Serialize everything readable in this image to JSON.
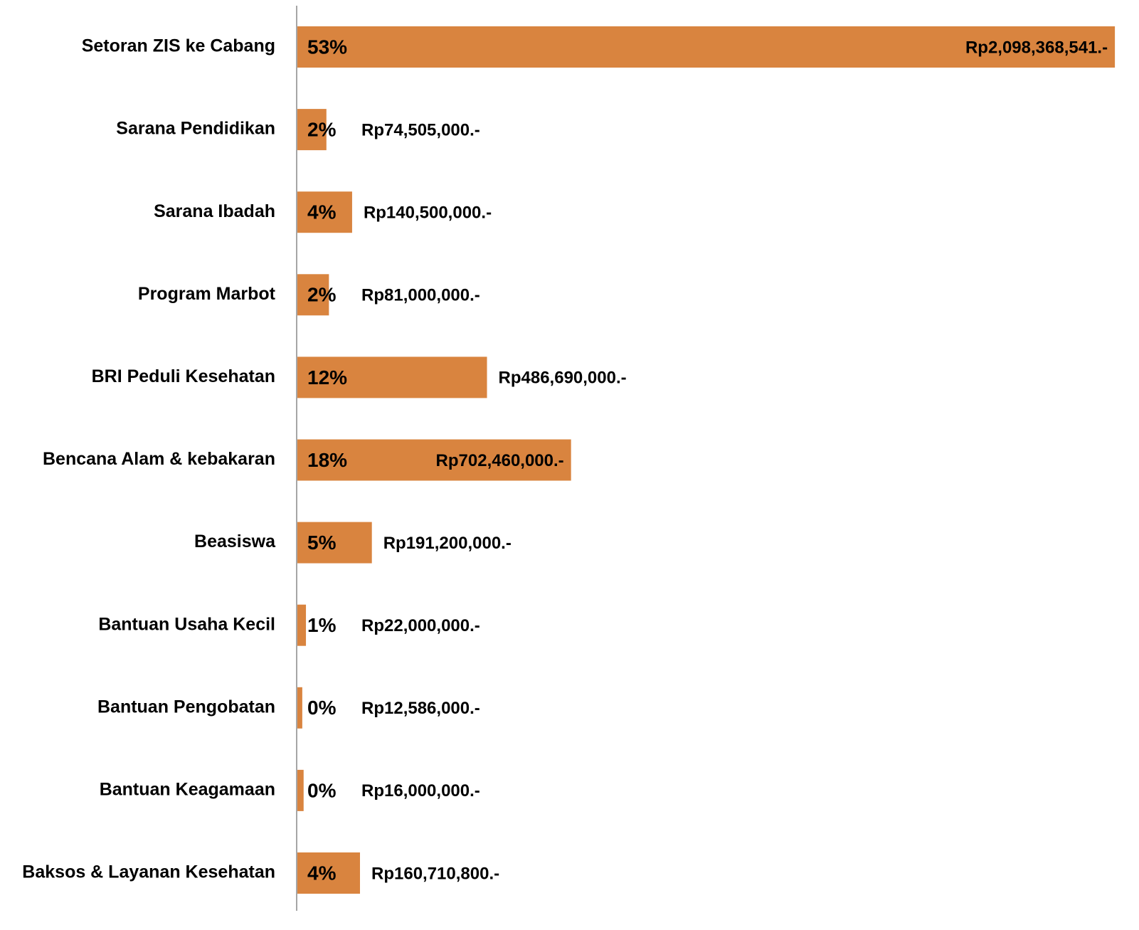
{
  "chart_data": {
    "type": "bar",
    "orientation": "horizontal",
    "color": "#d9843f",
    "categories": [
      "Setoran ZIS ke Cabang",
      "Sarana Pendidikan",
      "Sarana Ibadah",
      "Program Marbot",
      "BRI Peduli Kesehatan",
      "Bencana Alam & kebakaran",
      "Beasiswa",
      "Bantuan Usaha Kecil",
      "Bantuan Pengobatan",
      "Bantuan Keagamaan",
      "Baksos & Layanan Kesehatan"
    ],
    "values": [
      2098368541,
      74505000,
      140500000,
      81000000,
      486690000,
      702460000,
      191200000,
      22000000,
      12586000,
      16000000,
      160710800
    ],
    "value_labels": [
      "Rp2,098,368,541.-",
      "Rp74,505,000.-",
      "Rp140,500,000.-",
      "Rp81,000,000.-",
      "Rp486,690,000.-",
      "Rp702,460,000.-",
      "Rp191,200,000.-",
      "Rp22,000,000.-",
      "Rp12,586,000.-",
      "Rp16,000,000.-",
      "Rp160,710,800.-"
    ],
    "percent_labels": [
      "53%",
      "2%",
      "4%",
      "2%",
      "12%",
      "18%",
      "5%",
      "1%",
      "0%",
      "0%",
      "4%"
    ],
    "xlim": [
      0,
      2100000000
    ]
  }
}
